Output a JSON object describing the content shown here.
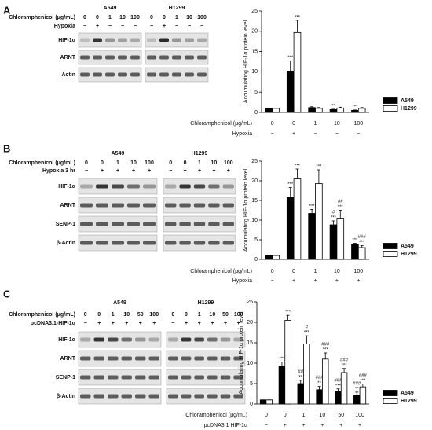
{
  "panels": [
    {
      "label": "A",
      "blot": {
        "cell_lines": [
          "A549",
          "H1299"
        ],
        "row_labels": [
          "Chloramphenicol (μg/mL)",
          "Hypoxia"
        ],
        "lanes": [
          [
            "0",
            "0",
            "1",
            "10",
            "100"
          ],
          [
            "−",
            "+",
            "−",
            "−",
            "−"
          ]
        ],
        "bands": [
          "HIF-1α",
          "ARNT",
          "Actin"
        ]
      }
    },
    {
      "label": "B",
      "blot": {
        "cell_lines": [
          "A549",
          "H1299"
        ],
        "row_labels": [
          "Chloramphenicol (μg/mL)",
          "Hypoxia 3 hr"
        ],
        "lanes": [
          [
            "0",
            "0",
            "1",
            "10",
            "100"
          ],
          [
            "−",
            "+",
            "+",
            "+",
            "+"
          ]
        ],
        "bands": [
          "HIF-1α",
          "ARNT",
          "SENP-1",
          "β-Actin"
        ]
      }
    },
    {
      "label": "C",
      "blot": {
        "cell_lines": [
          "A549",
          "H1299"
        ],
        "row_labels": [
          "Chloramphenicol (μg/mL)",
          "pcDNA3.1-HIF-1α"
        ],
        "lanes": [
          [
            "0",
            "0",
            "1",
            "10",
            "50",
            "100"
          ],
          [
            "−",
            "+",
            "+",
            "+",
            "+",
            "+"
          ]
        ],
        "bands": [
          "HIF-1α",
          "ARNT",
          "SENP-1",
          "β-Actin"
        ]
      }
    }
  ],
  "chart_data": [
    {
      "type": "bar",
      "ylabel": "Accumulating HIF-1α protein level",
      "xlabel": "Chloramphenicol (μg/mL)",
      "categories": [
        "0",
        "0",
        "1",
        "10",
        "100"
      ],
      "x_row": {
        "label": "Hypoxia",
        "values": [
          "−",
          "+",
          "−",
          "−",
          "−"
        ]
      },
      "ylim": [
        0,
        25
      ],
      "yticks": [
        0,
        5,
        10,
        15,
        20,
        25
      ],
      "legend": "lower right",
      "series": [
        {
          "name": "A549",
          "color": "#000000",
          "values": [
            1,
            10.2,
            1.2,
            0.7,
            0.5
          ],
          "errors": [
            0,
            2.5,
            0.2,
            0.1,
            0.1
          ],
          "sig": [
            null,
            [
              "***"
            ],
            null,
            [
              "**"
            ],
            [
              "***"
            ]
          ]
        },
        {
          "name": "H1299",
          "color": "#ffffff",
          "values": [
            1,
            19.7,
            1.0,
            1.1,
            1.0
          ],
          "errors": [
            0,
            3,
            0.2,
            0.2,
            0.2
          ],
          "sig": [
            null,
            [
              "***"
            ],
            null,
            null,
            null
          ]
        }
      ]
    },
    {
      "type": "bar",
      "ylabel": "Accumulating HIF-1α protein level",
      "xlabel": "Chloramphenicol (μg/mL)",
      "categories": [
        "0",
        "0",
        "1",
        "10",
        "100"
      ],
      "x_row": {
        "label": "Hypoxia",
        "values": [
          "−",
          "+",
          "+",
          "+",
          "+"
        ]
      },
      "ylim": [
        0,
        25
      ],
      "yticks": [
        0,
        5,
        10,
        15,
        20,
        25
      ],
      "legend": "lower right",
      "series": [
        {
          "name": "A549",
          "color": "#000000",
          "values": [
            1,
            15.8,
            11.7,
            8.8,
            3.8
          ],
          "errors": [
            0,
            2.5,
            1,
            1,
            0.3
          ],
          "sig": [
            null,
            [
              "***"
            ],
            [
              "***"
            ],
            [
              "***",
              "#"
            ],
            [
              "***"
            ]
          ]
        },
        {
          "name": "H1299",
          "color": "#ffffff",
          "values": [
            1,
            20.5,
            19.3,
            10.5,
            3.0
          ],
          "errors": [
            0,
            2.5,
            3.5,
            2,
            0.5
          ],
          "sig": [
            null,
            [
              "***"
            ],
            [
              "***"
            ],
            [
              "***",
              "##"
            ],
            [
              "***",
              "###"
            ]
          ]
        }
      ]
    },
    {
      "type": "bar",
      "ylabel": "Accumulating HIF-1α protein level",
      "xlabel": "Chloramphenicol (μg/mL)",
      "categories": [
        "0",
        "0",
        "1",
        "10",
        "50",
        "100"
      ],
      "x_row": {
        "label": "pcDNA3.1 HIF-1α",
        "values": [
          "−",
          "+",
          "+",
          "+",
          "+",
          "+"
        ]
      },
      "ylim": [
        0,
        25
      ],
      "yticks": [
        0,
        5,
        10,
        15,
        20,
        25
      ],
      "legend": "lower right",
      "series": [
        {
          "name": "A549",
          "color": "#000000",
          "values": [
            1,
            9.3,
            5.0,
            3.5,
            3.0,
            2.2
          ],
          "errors": [
            0,
            1,
            0.8,
            0.8,
            0.7,
            0.7
          ],
          "sig": [
            null,
            [
              "***"
            ],
            [
              "**",
              "##"
            ],
            [
              "**",
              "###"
            ],
            [
              "***",
              "###"
            ],
            [
              "**",
              "###"
            ]
          ]
        },
        {
          "name": "H1299",
          "color": "#ffffff",
          "values": [
            1,
            20.5,
            14.7,
            11.0,
            7.7,
            4.2
          ],
          "errors": [
            0,
            1.2,
            2,
            1.5,
            1,
            0.7
          ],
          "sig": [
            null,
            [
              "***"
            ],
            [
              "***",
              "#"
            ],
            [
              "***",
              "###"
            ],
            [
              "***",
              "###"
            ],
            [
              "***",
              "###"
            ]
          ]
        }
      ]
    }
  ]
}
